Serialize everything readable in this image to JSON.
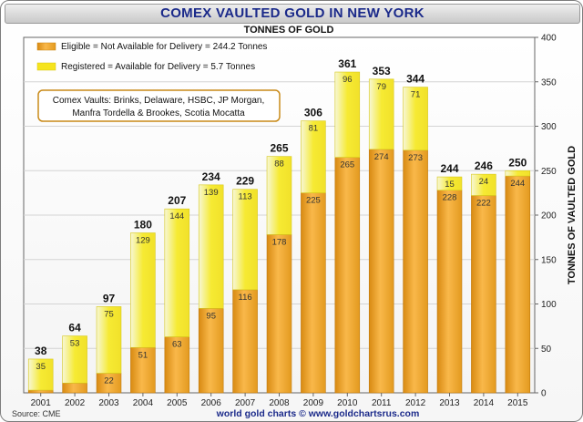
{
  "chart_data": {
    "type": "bar",
    "stacked": true,
    "title": "COMEX VAULTED GOLD IN NEW YORK",
    "subtitle": "TONNES OF GOLD",
    "ylabel": "TONNES OF VAULTED GOLD",
    "xlabel": "",
    "ylim": [
      0,
      400
    ],
    "yticks": [
      0,
      50,
      100,
      150,
      200,
      250,
      300,
      350,
      400
    ],
    "grid": true,
    "categories": [
      "2001",
      "2002",
      "2003",
      "2004",
      "2005",
      "2006",
      "2007",
      "2008",
      "2009",
      "2010",
      "2011",
      "2012",
      "2013",
      "2014",
      "2015"
    ],
    "series": [
      {
        "name": "Eligible = Not Available for Delivery = 244.2 Tonnes",
        "color": "#f5a623",
        "values": [
          3,
          11,
          22,
          51,
          63,
          95,
          116,
          178,
          225,
          265,
          274,
          273,
          228,
          222,
          244
        ],
        "labels": [
          "",
          "",
          "22",
          "51",
          "63",
          "95",
          "116",
          "178",
          "225",
          "265",
          "274",
          "273",
          "228",
          "222",
          "244"
        ]
      },
      {
        "name": "Registered = Available for Delivery = 5.7 Tonnes",
        "color": "#f5e020",
        "values": [
          35,
          53,
          75,
          129,
          144,
          139,
          113,
          88,
          81,
          96,
          79,
          71,
          15,
          24,
          6
        ],
        "labels": [
          "35",
          "53",
          "75",
          "129",
          "144",
          "139",
          "113",
          "88",
          "81",
          "96",
          "79",
          "71",
          "15",
          "24",
          ""
        ]
      }
    ],
    "totals": [
      "38",
      "64",
      "97",
      "180",
      "207",
      "234",
      "229",
      "265",
      "306",
      "361",
      "353",
      "344",
      "244",
      "246",
      "250"
    ],
    "legend_position": "top-left",
    "annotation": [
      "Comex Vaults: Brinks, Delaware, HSBC, JP Morgan,",
      "Manfra Tordella & Brookes, Scotia Mocatta"
    ]
  },
  "footer": "world gold charts © www.goldchartsrus.com",
  "source": "Source: CME"
}
